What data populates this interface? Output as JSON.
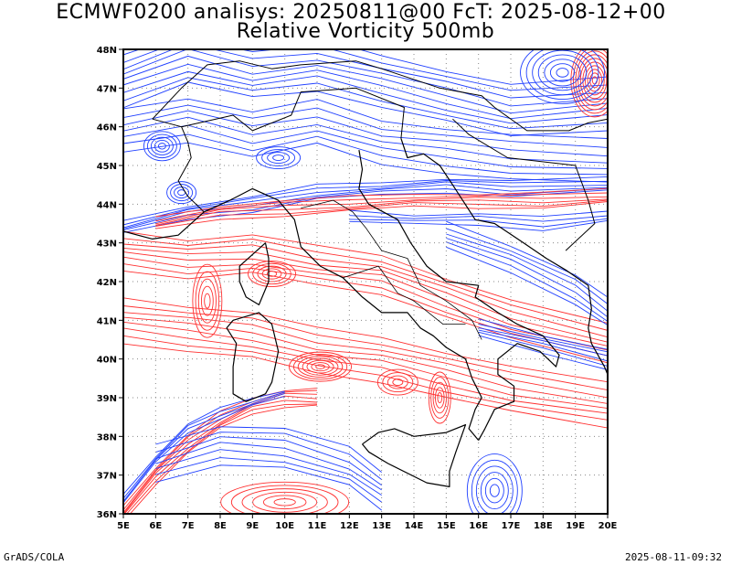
{
  "header": {
    "line1": "ECMWF0200 analisys: 20250811@00 FcT: 2025-08-12+00",
    "line2": "Relative Vorticity 500mb"
  },
  "footer": {
    "left": "GrADS/COLA",
    "right": "2025-08-11-09:32"
  },
  "map": {
    "lon_range": [
      5,
      20
    ],
    "lat_range": [
      36,
      48
    ],
    "lon_labels": [
      "5E",
      "6E",
      "7E",
      "8E",
      "9E",
      "10E",
      "11E",
      "12E",
      "13E",
      "14E",
      "15E",
      "16E",
      "17E",
      "18E",
      "19E",
      "20E"
    ],
    "lat_labels": [
      "36N",
      "37N",
      "38N",
      "39N",
      "40N",
      "41N",
      "42N",
      "43N",
      "44N",
      "45N",
      "46N",
      "47N",
      "48N"
    ],
    "grid": "dotted",
    "colors": {
      "positive": "#ff3030",
      "negative": "#2040ff",
      "coast": "#000000"
    }
  }
}
